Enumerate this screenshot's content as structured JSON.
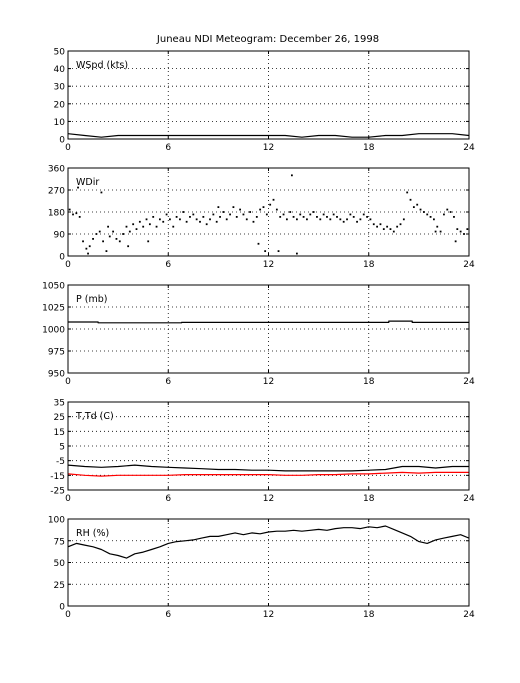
{
  "figure": {
    "title": "Juneau NDI Meteogram:   December 26, 1998"
  },
  "colors": {
    "black": "#000000",
    "red": "#ff0000",
    "background": "#ffffff"
  },
  "chart_data": [
    {
      "type": "line",
      "label": "WSpd (kts)",
      "xlim": [
        0,
        24
      ],
      "ylim": [
        0,
        50
      ],
      "xticks": [
        0,
        6,
        12,
        18,
        24
      ],
      "yticks": [
        0,
        10,
        20,
        30,
        40,
        50
      ],
      "grid": true,
      "series": [
        {
          "color": "#000000",
          "x": [
            0,
            1,
            2,
            3,
            4,
            5,
            6,
            7,
            8,
            9,
            10,
            11,
            12,
            13,
            14,
            15,
            16,
            17,
            18,
            19,
            20,
            21,
            22,
            23,
            24
          ],
          "y": [
            3,
            2,
            1,
            2,
            2,
            2,
            2,
            2,
            2,
            2,
            2,
            2,
            2,
            2,
            1,
            2,
            2,
            1,
            1,
            2,
            2,
            3,
            3,
            3,
            2
          ]
        }
      ]
    },
    {
      "type": "scatter",
      "label": "WDir",
      "xlim": [
        0,
        24
      ],
      "ylim": [
        0,
        360
      ],
      "xticks": [
        0,
        6,
        12,
        18,
        24
      ],
      "yticks": [
        0,
        90,
        180,
        270,
        360
      ],
      "grid": true,
      "series": [
        {
          "color": "#000000",
          "x": [
            0.1,
            0.3,
            0.5,
            0.7,
            0.9,
            1.1,
            1.3,
            1.5,
            1.7,
            1.9,
            2.1,
            2.3,
            2.5,
            2.7,
            2.9,
            3.1,
            3.3,
            3.5,
            3.7,
            3.9,
            4.1,
            4.3,
            4.5,
            4.7,
            4.9,
            5.1,
            5.3,
            5.5,
            5.7,
            5.9,
            6.1,
            6.3,
            6.5,
            6.7,
            6.9,
            7.1,
            7.3,
            7.5,
            7.7,
            7.9,
            8.1,
            8.3,
            8.5,
            8.7,
            8.9,
            9.1,
            9.3,
            9.5,
            9.7,
            9.9,
            10.1,
            10.3,
            10.5,
            10.7,
            10.9,
            11.1,
            11.3,
            11.5,
            11.7,
            11.9,
            12.1,
            12.3,
            12.5,
            12.7,
            12.9,
            13.1,
            13.3,
            13.5,
            13.7,
            13.9,
            14.1,
            14.3,
            14.5,
            14.7,
            14.9,
            15.1,
            15.3,
            15.5,
            15.7,
            15.9,
            16.1,
            16.3,
            16.5,
            16.7,
            16.9,
            17.1,
            17.3,
            17.5,
            17.7,
            17.9,
            18.1,
            18.3,
            18.5,
            18.7,
            18.9,
            19.1,
            19.3,
            19.5,
            19.7,
            19.9,
            20.1,
            20.3,
            20.5,
            20.7,
            20.9,
            21.1,
            21.3,
            21.5,
            21.7,
            21.9,
            22.1,
            22.3,
            22.5,
            22.7,
            22.9,
            23.1,
            23.3,
            23.5,
            23.7,
            23.9,
            0.6,
            1.2,
            2.0,
            2.4,
            3.6,
            4.8,
            9.0,
            11.4,
            11.8,
            12.6,
            13.7,
            13.4,
            22.0,
            23.2
          ],
          "y": [
            190,
            170,
            175,
            160,
            60,
            30,
            40,
            70,
            90,
            100,
            60,
            20,
            80,
            100,
            70,
            60,
            90,
            120,
            100,
            130,
            110,
            140,
            120,
            150,
            130,
            160,
            120,
            150,
            140,
            170,
            150,
            120,
            160,
            150,
            180,
            140,
            160,
            170,
            150,
            140,
            160,
            130,
            150,
            170,
            140,
            160,
            180,
            150,
            170,
            200,
            160,
            190,
            170,
            150,
            180,
            140,
            160,
            190,
            200,
            170,
            210,
            230,
            190,
            160,
            170,
            150,
            180,
            160,
            150,
            170,
            160,
            150,
            170,
            180,
            160,
            150,
            170,
            160,
            150,
            170,
            160,
            150,
            140,
            150,
            170,
            160,
            140,
            150,
            170,
            160,
            150,
            130,
            120,
            130,
            110,
            120,
            110,
            100,
            120,
            130,
            150,
            260,
            230,
            200,
            210,
            190,
            180,
            170,
            160,
            150,
            120,
            100,
            170,
            190,
            180,
            160,
            110,
            100,
            90,
            110,
            280,
            10,
            260,
            120,
            40,
            60,
            200,
            50,
            20,
            20,
            10,
            330,
            100,
            60
          ]
        }
      ]
    },
    {
      "type": "line",
      "label": "P (mb)",
      "xlim": [
        0,
        24
      ],
      "ylim": [
        950,
        1050
      ],
      "xticks": [
        0,
        6,
        12,
        18,
        24
      ],
      "yticks": [
        950,
        975,
        1000,
        1025,
        1050
      ],
      "grid": true,
      "series": [
        {
          "color": "#000000",
          "x": [
            0,
            1.8,
            1.8,
            6.8,
            6.8,
            19.2,
            19.2,
            20.6,
            20.6,
            24
          ],
          "y": [
            1008,
            1008,
            1007,
            1007,
            1007.5,
            1007.5,
            1009,
            1009,
            1007.5,
            1007.5
          ]
        }
      ]
    },
    {
      "type": "line",
      "label": "T,Td (C)",
      "xlim": [
        0,
        24
      ],
      "ylim": [
        -25,
        35
      ],
      "xticks": [
        0,
        6,
        12,
        18,
        24
      ],
      "yticks": [
        -25,
        -15,
        -5,
        5,
        15,
        25,
        35
      ],
      "grid": true,
      "series": [
        {
          "color": "#000000",
          "x": [
            0,
            1,
            2,
            3,
            4,
            5,
            6,
            7,
            8,
            9,
            10,
            11,
            12,
            13,
            14,
            15,
            16,
            17,
            18,
            19,
            20,
            21,
            22,
            23,
            24
          ],
          "y": [
            -8,
            -9,
            -9.5,
            -9,
            -8,
            -9,
            -9.5,
            -10,
            -10.5,
            -11,
            -11,
            -11.5,
            -11.5,
            -12,
            -12,
            -12,
            -12,
            -12,
            -11.5,
            -11,
            -9,
            -9,
            -10,
            -9,
            -9
          ]
        },
        {
          "color": "#ff0000",
          "x": [
            0,
            1,
            2,
            3,
            4,
            5,
            6,
            7,
            8,
            9,
            10,
            11,
            12,
            13,
            14,
            15,
            16,
            17,
            18,
            19,
            20,
            21,
            22,
            23,
            24
          ],
          "y": [
            -14,
            -15,
            -15.5,
            -15,
            -15,
            -15,
            -15,
            -14.5,
            -14.5,
            -14.5,
            -14.5,
            -14.5,
            -14.5,
            -15,
            -15,
            -14.5,
            -14.5,
            -14,
            -14,
            -13.5,
            -13,
            -13.5,
            -13,
            -13,
            -13
          ]
        }
      ]
    },
    {
      "type": "line",
      "label": "RH (%)",
      "xlim": [
        0,
        24
      ],
      "ylim": [
        0,
        100
      ],
      "xticks": [
        0,
        6,
        12,
        18,
        24
      ],
      "yticks": [
        0,
        25,
        50,
        75,
        100
      ],
      "grid": true,
      "series": [
        {
          "color": "#000000",
          "x": [
            0,
            0.5,
            1,
            1.5,
            2,
            2.5,
            3,
            3.5,
            4,
            4.5,
            5,
            5.5,
            6,
            6.5,
            7,
            7.5,
            8,
            8.5,
            9,
            9.5,
            10,
            10.5,
            11,
            11.5,
            12,
            12.5,
            13,
            13.5,
            14,
            14.5,
            15,
            15.5,
            16,
            16.5,
            17,
            17.5,
            18,
            18.5,
            19,
            19.5,
            20,
            20.5,
            21,
            21.5,
            22,
            22.5,
            23,
            23.5,
            24
          ],
          "y": [
            68,
            72,
            70,
            68,
            65,
            60,
            58,
            55,
            60,
            62,
            65,
            68,
            72,
            74,
            75,
            76,
            78,
            80,
            80,
            82,
            84,
            82,
            84,
            83,
            85,
            86,
            86,
            87,
            86,
            87,
            88,
            87,
            89,
            90,
            90,
            89,
            91,
            90,
            92,
            88,
            84,
            80,
            74,
            72,
            76,
            78,
            80,
            82,
            78
          ]
        }
      ]
    }
  ]
}
